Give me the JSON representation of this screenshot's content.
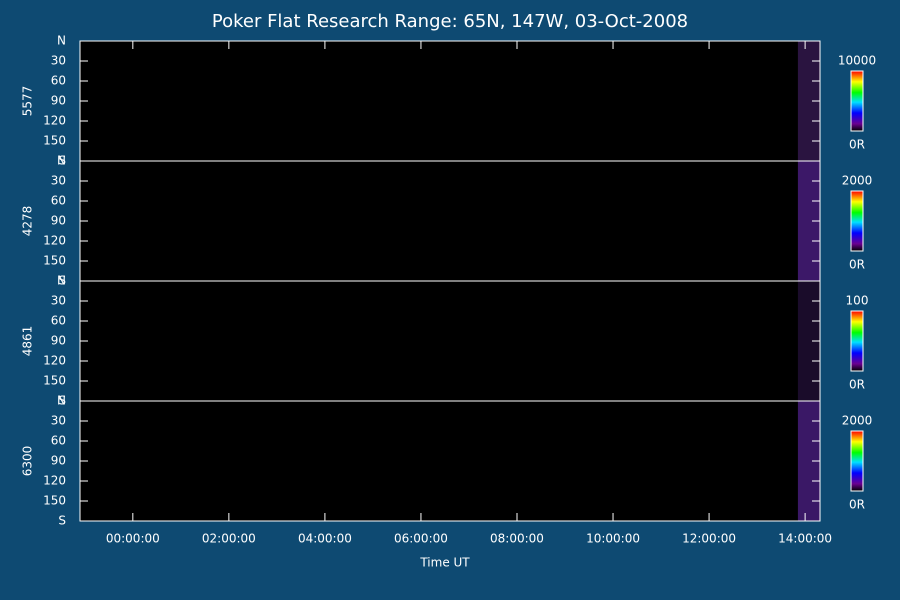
{
  "chart_data": {
    "type": "keogram",
    "title": "Poker Flat Research Range: 65N, 147W, 03-Oct-2008",
    "xlabel": "Time UT",
    "xlim": [
      -1.1,
      14.31
    ],
    "xticks": [
      {
        "value": 0,
        "label": "00:00:00"
      },
      {
        "value": 2,
        "label": "02:00:00"
      },
      {
        "value": 4,
        "label": "04:00:00"
      },
      {
        "value": 6,
        "label": "06:00:00"
      },
      {
        "value": 8,
        "label": "08:00:00"
      },
      {
        "value": 10,
        "label": "10:00:00"
      },
      {
        "value": 12,
        "label": "12:00:00"
      },
      {
        "value": 14,
        "label": "14:00:00"
      }
    ],
    "panels": [
      {
        "name": "5577",
        "ylim": [
          0,
          180
        ],
        "yticks": [
          {
            "value": 0,
            "label": "N"
          },
          30,
          60,
          90,
          120,
          150,
          {
            "value": 180,
            "label": "S"
          }
        ],
        "colorbar_lim": [
          0,
          10000
        ],
        "colorbar_ticks": [
          {
            "value": 0,
            "label": "0R"
          },
          10000
        ],
        "data_xlim": [
          13.85,
          14.31
        ],
        "data_color": "#2a1440"
      },
      {
        "name": "4278",
        "ylim": [
          0,
          180
        ],
        "yticks": [
          {
            "value": 0,
            "label": "N"
          },
          30,
          60,
          90,
          120,
          150,
          {
            "value": 180,
            "label": "S"
          }
        ],
        "colorbar_lim": [
          0,
          2000
        ],
        "colorbar_ticks": [
          {
            "value": 0,
            "label": "0R"
          },
          2000
        ],
        "data_xlim": [
          13.85,
          14.31
        ],
        "data_color": "#3c1868"
      },
      {
        "name": "4861",
        "ylim": [
          0,
          180
        ],
        "yticks": [
          {
            "value": 0,
            "label": "N"
          },
          30,
          60,
          90,
          120,
          150,
          {
            "value": 180,
            "label": "S"
          }
        ],
        "colorbar_lim": [
          0,
          100
        ],
        "colorbar_ticks": [
          {
            "value": 0,
            "label": "0R"
          },
          100
        ],
        "data_xlim": [
          13.85,
          14.31
        ],
        "data_color": "#1a0c2a"
      },
      {
        "name": "6300",
        "ylim": [
          0,
          180
        ],
        "yticks": [
          {
            "value": 0,
            "label": "N"
          },
          30,
          60,
          90,
          120,
          150,
          {
            "value": 180,
            "label": "S"
          }
        ],
        "colorbar_lim": [
          0,
          2000
        ],
        "colorbar_ticks": [
          {
            "value": 0,
            "label": "0R"
          },
          2000
        ],
        "data_xlim": [
          13.85,
          14.31
        ],
        "data_color": "#3a1866"
      }
    ]
  }
}
